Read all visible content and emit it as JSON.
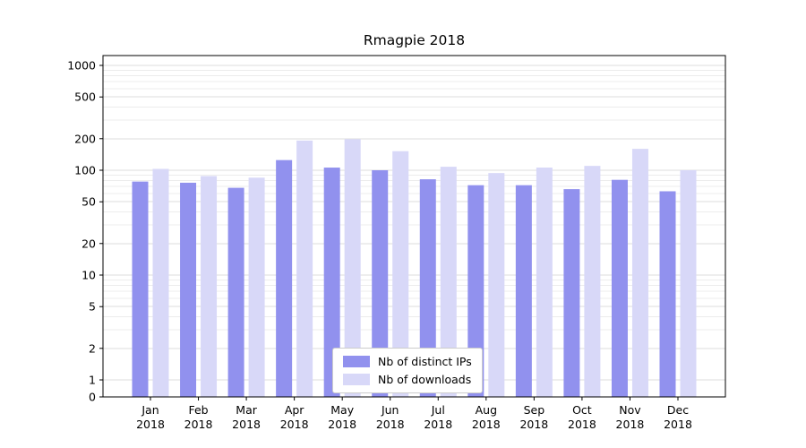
{
  "title": "Rmagpie 2018",
  "chart_data": {
    "type": "bar",
    "title": "Rmagpie 2018",
    "categories": [
      "Jan 2018",
      "Feb 2018",
      "Mar 2018",
      "Apr 2018",
      "May 2018",
      "Jun 2018",
      "Jul 2018",
      "Aug 2018",
      "Sep 2018",
      "Oct 2018",
      "Nov 2018",
      "Dec 2018"
    ],
    "series": [
      {
        "name": "Nb of distinct IPs",
        "color": "#9191ee",
        "values": [
          78,
          76,
          68,
          125,
          106,
          100,
          82,
          72,
          72,
          66,
          81,
          63
        ]
      },
      {
        "name": "Nb of downloads",
        "color": "#d8d8f8",
        "values": [
          103,
          88,
          85,
          192,
          198,
          152,
          108,
          94,
          106,
          110,
          160,
          100
        ]
      }
    ],
    "y_ticks": [
      0,
      1,
      2,
      5,
      10,
      20,
      50,
      100,
      200,
      500,
      1000
    ],
    "y_scale": "log",
    "ylim": [
      0,
      1250
    ],
    "grid": true,
    "grid_color_minor": "#ececec",
    "grid_color_major": "#dddddd",
    "legend_position": "lower center"
  }
}
